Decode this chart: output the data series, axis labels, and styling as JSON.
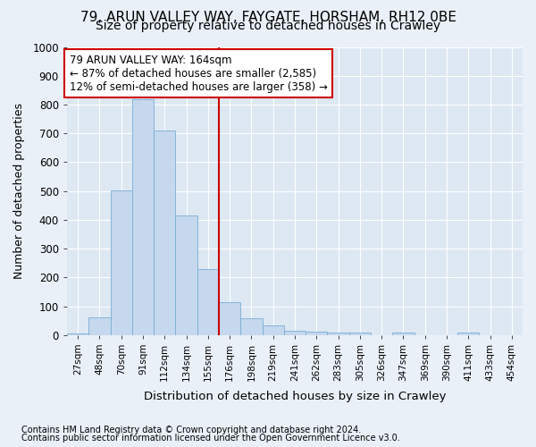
{
  "title1": "79, ARUN VALLEY WAY, FAYGATE, HORSHAM, RH12 0BE",
  "title2": "Size of property relative to detached houses in Crawley",
  "xlabel": "Distribution of detached houses by size in Crawley",
  "ylabel": "Number of detached properties",
  "footnote1": "Contains HM Land Registry data © Crown copyright and database right 2024.",
  "footnote2": "Contains public sector information licensed under the Open Government Licence v3.0.",
  "annotation_line1": "79 ARUN VALLEY WAY: 164sqm",
  "annotation_line2": "← 87% of detached houses are smaller (2,585)",
  "annotation_line3": "12% of semi-detached houses are larger (358) →",
  "bar_categories": [
    "27sqm",
    "48sqm",
    "70sqm",
    "91sqm",
    "112sqm",
    "134sqm",
    "155sqm",
    "176sqm",
    "198sqm",
    "219sqm",
    "241sqm",
    "262sqm",
    "283sqm",
    "305sqm",
    "326sqm",
    "347sqm",
    "369sqm",
    "390sqm",
    "411sqm",
    "433sqm",
    "454sqm"
  ],
  "bar_values": [
    5,
    60,
    503,
    820,
    710,
    415,
    230,
    115,
    57,
    32,
    14,
    11,
    10,
    8,
    0,
    8,
    0,
    0,
    7,
    0,
    0
  ],
  "bar_color": "#c5d8ed",
  "bar_edge_color": "#7aadd4",
  "vline_color": "#cc0000",
  "background_color": "#eaf0f8",
  "plot_bg_color": "#dde8f3",
  "grid_color": "#ffffff",
  "ylim": [
    0,
    1000
  ],
  "yticks": [
    0,
    100,
    200,
    300,
    400,
    500,
    600,
    700,
    800,
    900,
    1000
  ],
  "vline_x": 6.5
}
